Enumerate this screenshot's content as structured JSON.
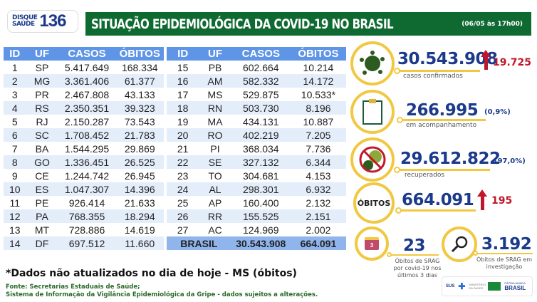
{
  "header": {
    "logo_top": "DISQUE",
    "logo_bottom": "SAÚDE",
    "logo_number": "136",
    "title": "SITUAÇÃO EPIDEMIOLÓGICA DA COVID-19 NO BRASIL",
    "date": "(06/05 às 17h00)"
  },
  "table": {
    "columns": [
      "ID",
      "UF",
      "CASOS",
      "ÓBITOS"
    ],
    "left": [
      [
        "1",
        "SP",
        "5.417.649",
        "168.334"
      ],
      [
        "2",
        "MG",
        "3.361.406",
        "61.377"
      ],
      [
        "3",
        "PR",
        "2.467.808",
        "43.133"
      ],
      [
        "4",
        "RS",
        "2.350.351",
        "39.323"
      ],
      [
        "5",
        "RJ",
        "2.150.287",
        "73.543"
      ],
      [
        "6",
        "SC",
        "1.708.452",
        "21.783"
      ],
      [
        "7",
        "BA",
        "1.544.295",
        "29.869"
      ],
      [
        "8",
        "GO",
        "1.336.451",
        "26.525"
      ],
      [
        "9",
        "CE",
        "1.244.742",
        "26.945"
      ],
      [
        "10",
        "ES",
        "1.047.307",
        "14.396"
      ],
      [
        "11",
        "PE",
        "926.414",
        "21.633"
      ],
      [
        "12",
        "PA",
        "768.355",
        "18.294"
      ],
      [
        "13",
        "MT",
        "728.886",
        "14.619"
      ],
      [
        "14",
        "DF",
        "697.512",
        "11.660"
      ]
    ],
    "right": [
      [
        "15",
        "PB",
        "602.664",
        "10.214"
      ],
      [
        "16",
        "AM",
        "582.332",
        "14.172"
      ],
      [
        "17",
        "MS",
        "529.875",
        "10.533*"
      ],
      [
        "18",
        "RN",
        "503.730",
        "8.196"
      ],
      [
        "19",
        "MA",
        "434.131",
        "10.887"
      ],
      [
        "20",
        "RO",
        "402.219",
        "7.205"
      ],
      [
        "21",
        "PI",
        "368.034",
        "7.736"
      ],
      [
        "22",
        "SE",
        "327.132",
        "6.344"
      ],
      [
        "23",
        "TO",
        "304.681",
        "4.153"
      ],
      [
        "24",
        "AL",
        "298.301",
        "6.932"
      ],
      [
        "25",
        "AP",
        "160.400",
        "2.132"
      ],
      [
        "26",
        "RR",
        "155.525",
        "2.151"
      ],
      [
        "27",
        "AC",
        "124.969",
        "2.002"
      ]
    ],
    "total": {
      "label": "BRASIL",
      "casos": "30.543.908",
      "obitos": "664.091"
    }
  },
  "stats": {
    "confirmed": {
      "value": "30.543.908",
      "delta": "19.725",
      "label": "casos confirmados",
      "icon": "virus-icon"
    },
    "monitoring": {
      "value": "266.995",
      "pct": "(0,9%)",
      "label": "em acompanhamento",
      "icon": "clipboard-icon"
    },
    "recovered": {
      "value": "29.612.822",
      "pct": "(97,0%)",
      "label": "recuperados",
      "icon": "no-virus-icon"
    },
    "deaths": {
      "badge": "ÓBITOS",
      "value": "664.091",
      "delta": "195"
    },
    "srag": {
      "value": "23",
      "label": "Óbitos de SRAG por covid-19 nos últimos 3 dias",
      "icon_text": "3",
      "icon": "calendar-icon"
    },
    "investigation": {
      "value": "3.192",
      "label": "Óbitos de SRAG em investigação",
      "icon": "magnifier-icon"
    }
  },
  "footer": {
    "note": "*Dados não atualizados no dia de hoje - MS (óbitos)",
    "source1": "Fonte: Secretarias Estaduais de Saúde;",
    "source2": "Sistema de Informação da Vigilância Epidemiológica da Gripe - dados sujeitos a alterações.",
    "sus": "SUS",
    "ministry": "MINISTÉRIO DA SAÚDE",
    "patria": "PÁTRIA AMADA",
    "brasil": "BRASIL"
  },
  "colors": {
    "green": "#0f6a31",
    "blue_header": "#5f95e6",
    "gold": "#f1c842",
    "red": "#c0182a",
    "navy": "#1b3a8c"
  }
}
